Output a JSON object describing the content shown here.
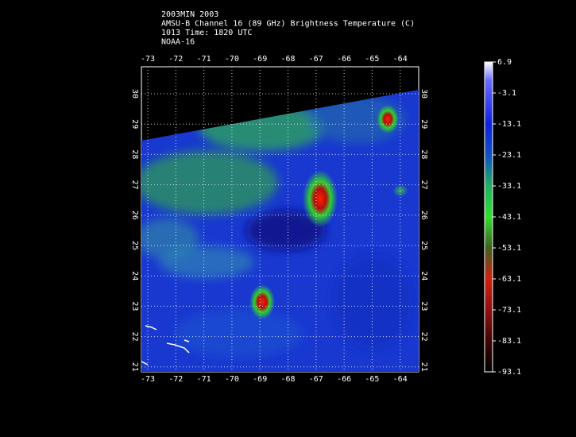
{
  "header": {
    "lines": [
      "2003MIN 2003",
      "AMSU-B Channel 16 (89 GHz) Brightness Temperature (C)",
      "1013 Time: 1820 UTC",
      "NOAA-16"
    ]
  },
  "map": {
    "lon_ticks": [
      -73,
      -72,
      -71,
      -70,
      -69,
      -68,
      -67,
      -66,
      -65,
      -64
    ],
    "lat_ticks": [
      30,
      29,
      28,
      27,
      26,
      25,
      24,
      23,
      22,
      21
    ]
  },
  "colorbar": {
    "ticks": [
      6.9,
      -3.1,
      -13.1,
      -23.1,
      -33.1,
      -43.1,
      -53.1,
      -63.1,
      -73.1,
      -83.1,
      -93.1
    ]
  }
}
